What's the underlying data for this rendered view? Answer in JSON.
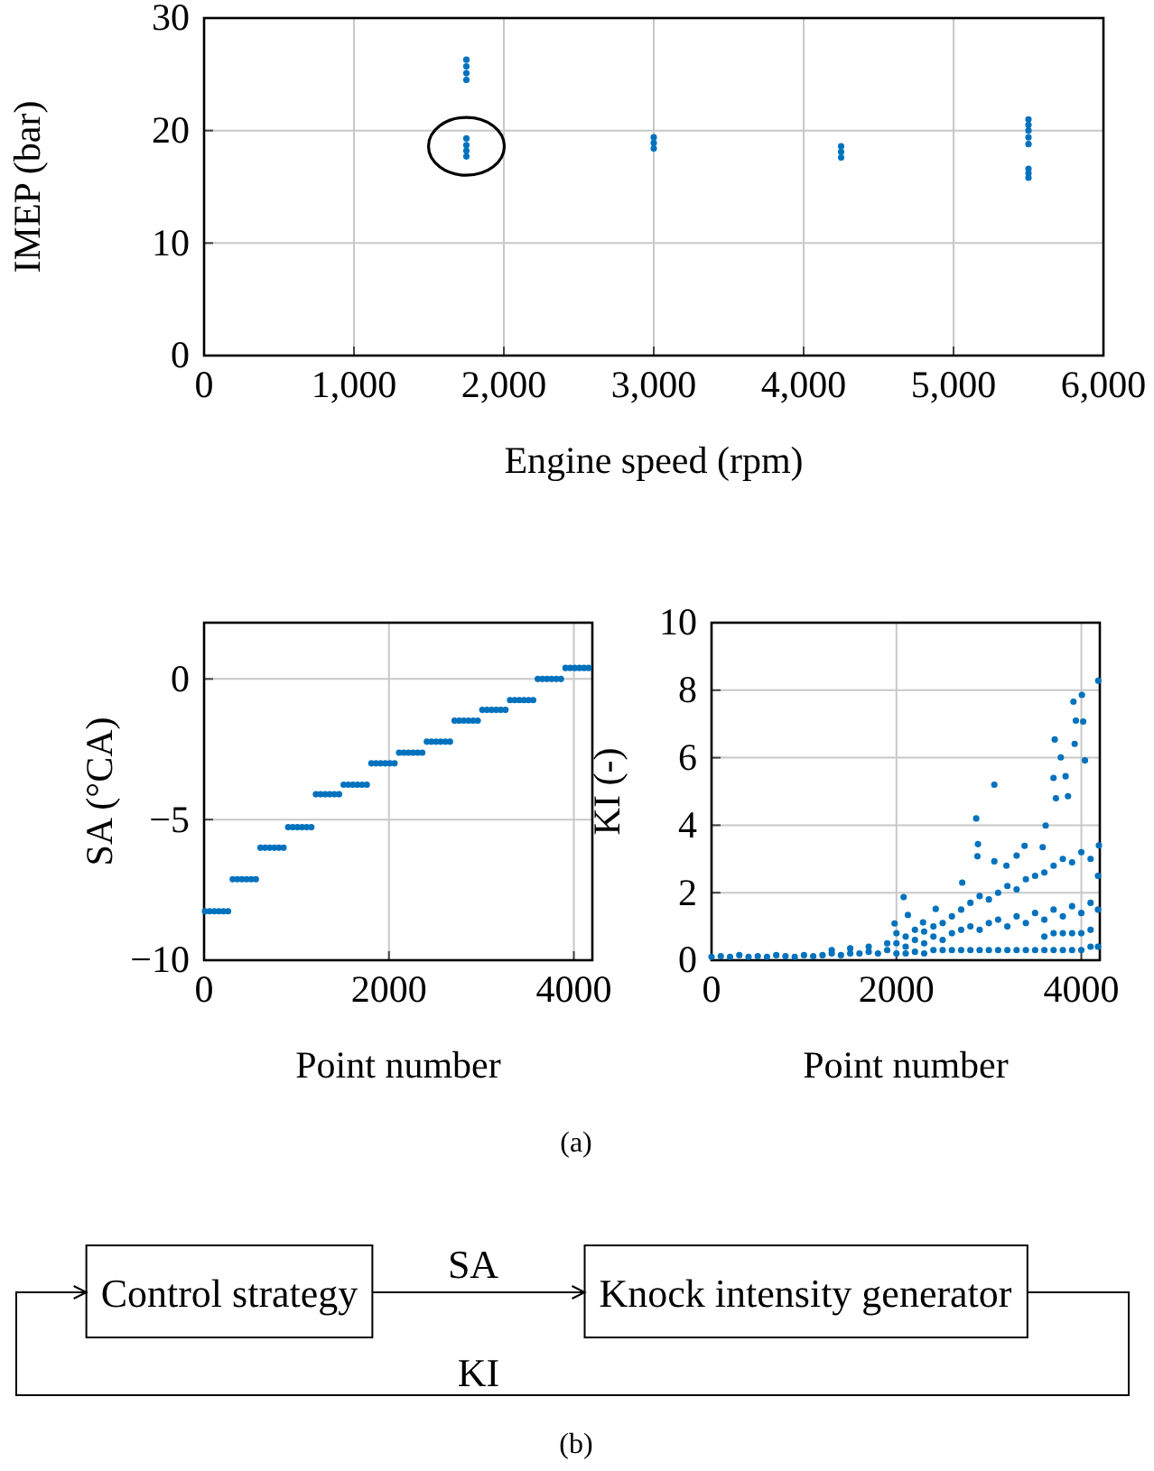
{
  "chart_data": [
    {
      "type": "scatter",
      "xlabel": "Engine speed (rpm)",
      "ylabel": "IMEP (bar)",
      "xlim": [
        0,
        6000
      ],
      "ylim": [
        0,
        30
      ],
      "xticks": [
        0,
        {
          "value": 1000,
          "label": "1,000"
        },
        {
          "value": 2000,
          "label": "2,000"
        },
        {
          "value": 3000,
          "label": "3,000"
        },
        {
          "value": 4000,
          "label": "4,000"
        },
        {
          "value": 5000,
          "label": "5,000"
        },
        {
          "value": 6000,
          "label": "6,000"
        }
      ],
      "yticks": [
        0,
        10,
        20,
        30
      ],
      "grid": true,
      "marker": "circle",
      "series": [
        {
          "color": "#0072bd",
          "x": [
            1750,
            1750,
            1750,
            1750,
            1750,
            1750,
            1750,
            1750,
            3000,
            3000,
            3000,
            4250,
            4250,
            4250,
            5500,
            5500,
            5500,
            5500,
            5500,
            5500,
            5500,
            5500
          ],
          "values": [
            24.5,
            25.1,
            25.7,
            26.3,
            17.7,
            18.2,
            18.7,
            19.3,
            18.4,
            18.9,
            19.4,
            17.6,
            18.1,
            18.6,
            18.8,
            19.4,
            20.0,
            20.5,
            21.0,
            15.8,
            16.2,
            16.6
          ]
        }
      ]
    },
    {
      "type": "scatter",
      "xlabel": "Point number",
      "ylabel": "SA (°CA)",
      "xlim": [
        0,
        4200
      ],
      "ylim": [
        -10,
        2
      ],
      "xticks": [
        0,
        2000,
        4000
      ],
      "yticks": [
        {
          "value": -10,
          "label": "−10"
        },
        {
          "value": -5,
          "label": "−5"
        },
        0
      ],
      "grid": true,
      "marker": "circle",
      "series": [
        {
          "color": "#0072bd",
          "x": [
            10,
            60,
            110,
            160,
            210,
            260,
            310,
            360,
            410,
            460,
            510,
            560,
            610,
            660,
            710,
            760,
            810,
            860,
            910,
            960,
            1010,
            1060,
            1110,
            1160,
            1210,
            1260,
            1310,
            1360,
            1410,
            1460,
            1510,
            1560,
            1610,
            1660,
            1710,
            1760,
            1810,
            1860,
            1910,
            1960,
            2010,
            2060,
            2110,
            2160,
            2210,
            2260,
            2310,
            2360,
            2410,
            2460,
            2510,
            2560,
            2610,
            2660,
            2710,
            2760,
            2810,
            2860,
            2910,
            2960,
            3010,
            3060,
            3110,
            3160,
            3210,
            3260,
            3310,
            3360,
            3410,
            3460,
            3510,
            3560,
            3610,
            3660,
            3710,
            3760,
            3810,
            3860,
            3910,
            3960,
            4010,
            4060,
            4110,
            4160
          ],
          "values": [
            -8.26,
            -8.26,
            -8.26,
            -8.26,
            -8.26,
            -8.26,
            -7.12,
            -7.12,
            -7.12,
            -7.12,
            -7.12,
            -7.12,
            -6.0,
            -6.0,
            -6.0,
            -6.0,
            -6.0,
            -6.0,
            -5.27,
            -5.27,
            -5.27,
            -5.27,
            -5.27,
            -5.27,
            -4.1,
            -4.1,
            -4.1,
            -4.1,
            -4.1,
            -4.1,
            -3.76,
            -3.76,
            -3.76,
            -3.76,
            -3.76,
            -3.76,
            -3.0,
            -3.0,
            -3.0,
            -3.0,
            -3.0,
            -3.0,
            -2.62,
            -2.62,
            -2.62,
            -2.62,
            -2.62,
            -2.62,
            -2.23,
            -2.23,
            -2.23,
            -2.23,
            -2.23,
            -2.23,
            -1.48,
            -1.48,
            -1.48,
            -1.48,
            -1.48,
            -1.48,
            -1.1,
            -1.1,
            -1.1,
            -1.1,
            -1.1,
            -1.1,
            -0.75,
            -0.75,
            -0.75,
            -0.75,
            -0.75,
            -0.75,
            0,
            0,
            0,
            0,
            0,
            0,
            0.39,
            0.39,
            0.39,
            0.39,
            0.39,
            0.39
          ]
        }
      ]
    },
    {
      "type": "scatter",
      "xlabel": "Point number",
      "ylabel": "KI (-)",
      "xlim": [
        0,
        4200
      ],
      "ylim": [
        0,
        10
      ],
      "xticks": [
        0,
        2000,
        4000
      ],
      "yticks": [
        0,
        2,
        4,
        6,
        8,
        10
      ],
      "grid": true,
      "marker": "circle",
      "annotations": [
        "(a)"
      ],
      "series": [
        {
          "color": "#0072bd",
          "x": [
            0,
            100,
            200,
            300,
            400,
            500,
            600,
            700,
            800,
            900,
            1000,
            1100,
            1200,
            1300,
            1400,
            1500,
            1600,
            1700,
            1800,
            1900,
            1300,
            1500,
            1700,
            1900,
            2000,
            2000,
            2000,
            2100,
            2100,
            2100,
            2200,
            2200,
            2200,
            2300,
            2300,
            2300,
            2400,
            2400,
            2400,
            2500,
            2500,
            2500,
            2600,
            2600,
            2600,
            2700,
            2700,
            2700,
            2800,
            2800,
            2800,
            2900,
            2900,
            2900,
            3000,
            3000,
            3000,
            3100,
            3100,
            3100,
            3200,
            3200,
            3200,
            3300,
            3300,
            3300,
            3400,
            3400,
            3400,
            3500,
            3500,
            3500,
            3600,
            3600,
            3600,
            3600,
            3700,
            3700,
            3700,
            3700,
            3800,
            3800,
            3800,
            3800,
            3900,
            3900,
            3900,
            3900,
            4000,
            4000,
            4000,
            4000,
            4100,
            4100,
            4100,
            4100,
            4180,
            4180,
            4180,
            4183,
            4006,
            3915,
            3941,
            4020,
            3712,
            3928,
            3778,
            4039,
            3059,
            3699,
            3830,
            3725,
            3856,
            2863,
            3614,
            2882,
            2876,
            3386,
            3582,
            4190,
            2078,
            2124,
            2425,
            2288,
            1980,
            2712,
            3059,
            3190,
            3300
          ],
          "values": [
            0.1,
            0.12,
            0.1,
            0.15,
            0.1,
            0.12,
            0.1,
            0.15,
            0.12,
            0.1,
            0.15,
            0.12,
            0.15,
            0.2,
            0.15,
            0.2,
            0.2,
            0.25,
            0.2,
            0.3,
            0.3,
            0.35,
            0.4,
            0.5,
            0.2,
            0.5,
            0.8,
            0.2,
            0.4,
            0.7,
            0.25,
            0.6,
            0.9,
            0.2,
            0.5,
            0.85,
            0.3,
            0.7,
            1.0,
            0.3,
            0.6,
            1.1,
            0.3,
            0.8,
            1.3,
            0.3,
            0.9,
            1.5,
            0.3,
            1.0,
            1.7,
            0.3,
            0.9,
            1.9,
            0.3,
            1.1,
            1.8,
            0.3,
            1.2,
            2.0,
            0.3,
            1.0,
            2.2,
            0.3,
            1.3,
            2.1,
            0.3,
            1.1,
            2.4,
            0.3,
            1.4,
            2.5,
            0.3,
            1.2,
            2.6,
            0.7,
            0.3,
            1.5,
            2.8,
            0.8,
            0.3,
            1.3,
            3.0,
            0.8,
            0.3,
            1.6,
            2.9,
            0.8,
            0.3,
            1.4,
            3.2,
            0.8,
            0.4,
            1.7,
            3.0,
            0.9,
            0.4,
            1.5,
            2.5,
            8.28,
            7.86,
            7.66,
            7.1,
            7.07,
            6.54,
            6.41,
            6.01,
            5.92,
            5.2,
            5.4,
            5.45,
            4.8,
            4.86,
            4.2,
            3.99,
            3.44,
            3.08,
            3.39,
            3.35,
            3.4,
            1.87,
            1.34,
            1.52,
            1.12,
            1.09,
            2.3,
            2.93,
            2.8,
            3.1
          ]
        }
      ]
    },
    {
      "type": "other",
      "annotations": [
        "Control strategy",
        "SA",
        "Knock intensity generator",
        "KI",
        "(b)"
      ]
    }
  ]
}
